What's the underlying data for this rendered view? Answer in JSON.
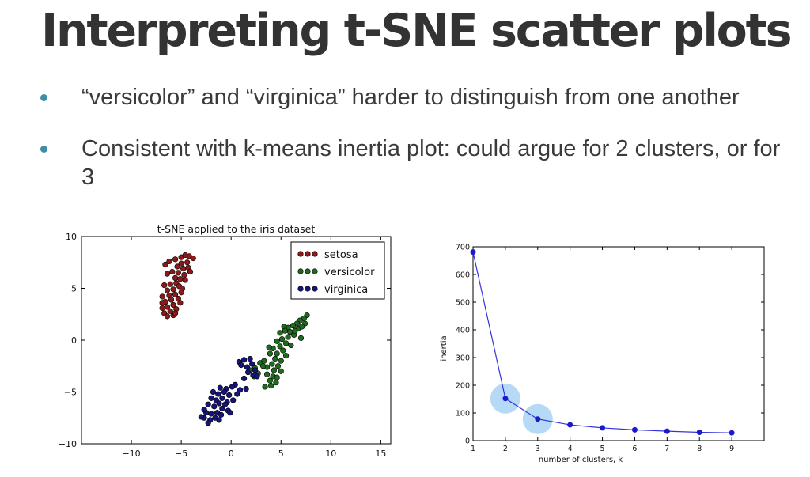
{
  "slide": {
    "title": "Interpreting t-SNE scatter plots",
    "bullets": [
      "“versicolor” and “virginica” harder to distinguish from one another",
      "Consistent with k-means inertia plot: could argue for 2 clusters, or for 3"
    ],
    "bullet_color": "#3f8ea6"
  },
  "chart_data": [
    {
      "type": "scatter",
      "title": "t-SNE applied to the iris dataset",
      "xlabel": "",
      "ylabel": "",
      "xlim": [
        -15,
        16
      ],
      "ylim": [
        -10,
        10
      ],
      "xticks": [
        -10,
        -5,
        0,
        5,
        10,
        15
      ],
      "yticks": [
        -10,
        -5,
        0,
        5,
        10
      ],
      "grid": false,
      "legend_position": "top-right",
      "series": [
        {
          "name": "setosa",
          "color": "#8b1a1a",
          "points": [
            [
              -6.6,
              7.3
            ],
            [
              -6.2,
              7.6
            ],
            [
              -5.6,
              7.8
            ],
            [
              -5.0,
              8.0
            ],
            [
              -4.6,
              8.2
            ],
            [
              -4.2,
              8.1
            ],
            [
              -3.8,
              7.9
            ],
            [
              -4.4,
              7.5
            ],
            [
              -5.0,
              7.4
            ],
            [
              -5.4,
              7.1
            ],
            [
              -4.8,
              6.9
            ],
            [
              -4.3,
              7.0
            ],
            [
              -4.1,
              6.6
            ],
            [
              -4.7,
              6.3
            ],
            [
              -5.3,
              6.5
            ],
            [
              -5.9,
              6.6
            ],
            [
              -6.4,
              6.4
            ],
            [
              -5.6,
              6.0
            ],
            [
              -5.1,
              5.9
            ],
            [
              -4.6,
              5.8
            ],
            [
              -5.5,
              5.5
            ],
            [
              -6.1,
              5.4
            ],
            [
              -6.7,
              5.3
            ],
            [
              -5.2,
              5.2
            ],
            [
              -4.9,
              5.0
            ],
            [
              -5.8,
              4.9
            ],
            [
              -6.4,
              4.8
            ],
            [
              -5.0,
              4.6
            ],
            [
              -5.6,
              4.4
            ],
            [
              -6.2,
              4.3
            ],
            [
              -6.9,
              4.2
            ],
            [
              -5.3,
              4.0
            ],
            [
              -6.0,
              3.9
            ],
            [
              -6.6,
              3.7
            ],
            [
              -5.1,
              3.6
            ],
            [
              -5.8,
              3.4
            ],
            [
              -6.4,
              3.2
            ],
            [
              -6.9,
              3.1
            ],
            [
              -5.5,
              3.0
            ],
            [
              -6.1,
              2.8
            ],
            [
              -6.7,
              2.6
            ],
            [
              -5.8,
              2.4
            ],
            [
              -6.4,
              2.3
            ],
            [
              -5.6,
              2.6
            ],
            [
              -6.9,
              3.6
            ]
          ]
        },
        {
          "name": "versicolor",
          "color": "#1e6b1e",
          "points": [
            [
              7.6,
              2.4
            ],
            [
              7.3,
              2.1
            ],
            [
              6.9,
              1.9
            ],
            [
              7.4,
              1.6
            ],
            [
              6.6,
              1.6
            ],
            [
              6.2,
              1.4
            ],
            [
              5.7,
              1.2
            ],
            [
              5.3,
              1.3
            ],
            [
              6.7,
              1.1
            ],
            [
              7.1,
              1.3
            ],
            [
              5.9,
              0.8
            ],
            [
              5.4,
              0.9
            ],
            [
              4.9,
              0.7
            ],
            [
              6.3,
              0.5
            ],
            [
              5.7,
              0.3
            ],
            [
              7.0,
              0.2
            ],
            [
              5.1,
              0.1
            ],
            [
              4.6,
              -0.1
            ],
            [
              5.5,
              -0.3
            ],
            [
              6.0,
              -0.5
            ],
            [
              4.9,
              -0.6
            ],
            [
              4.2,
              -0.8
            ],
            [
              3.8,
              -0.7
            ],
            [
              5.2,
              -1.0
            ],
            [
              4.6,
              -1.3
            ],
            [
              3.9,
              -1.3
            ],
            [
              5.5,
              -1.5
            ],
            [
              4.4,
              -1.8
            ],
            [
              5.0,
              -2.0
            ],
            [
              3.3,
              -2.0
            ],
            [
              4.1,
              -2.3
            ],
            [
              2.9,
              -2.2
            ],
            [
              4.7,
              -2.5
            ],
            [
              3.6,
              -2.6
            ],
            [
              2.4,
              -2.7
            ],
            [
              4.3,
              -2.9
            ],
            [
              5.0,
              -3.0
            ],
            [
              3.6,
              -3.3
            ],
            [
              4.2,
              -3.5
            ],
            [
              2.7,
              -3.2
            ],
            [
              4.6,
              -3.6
            ],
            [
              3.9,
              -3.9
            ],
            [
              4.5,
              -4.1
            ],
            [
              4.0,
              -4.4
            ],
            [
              3.4,
              -4.5
            ],
            [
              1.9,
              -2.9
            ],
            [
              3.2,
              -2.5
            ],
            [
              6.4,
              0.9
            ],
            [
              2.3,
              -3.5
            ]
          ]
        },
        {
          "name": "virginica",
          "color": "#14147a",
          "points": [
            [
              0.8,
              -2.1
            ],
            [
              1.3,
              -1.9
            ],
            [
              1.9,
              -1.8
            ],
            [
              1.0,
              -2.4
            ],
            [
              1.6,
              -2.6
            ],
            [
              2.1,
              -2.3
            ],
            [
              1.7,
              -3.1
            ],
            [
              2.2,
              -3.4
            ],
            [
              2.6,
              -3.5
            ],
            [
              1.3,
              -3.7
            ],
            [
              0.4,
              -4.3
            ],
            [
              0.1,
              -4.5
            ],
            [
              -0.5,
              -4.7
            ],
            [
              -1.1,
              -4.6
            ],
            [
              -0.7,
              -5.0
            ],
            [
              -1.3,
              -5.2
            ],
            [
              -1.8,
              -5.0
            ],
            [
              -0.2,
              -5.3
            ],
            [
              0.6,
              -5.2
            ],
            [
              -0.9,
              -5.6
            ],
            [
              -1.5,
              -5.8
            ],
            [
              -2.0,
              -5.6
            ],
            [
              -0.4,
              -6.0
            ],
            [
              0.2,
              -5.8
            ],
            [
              -1.2,
              -6.1
            ],
            [
              -1.7,
              -6.4
            ],
            [
              -2.3,
              -6.2
            ],
            [
              -0.9,
              -6.6
            ],
            [
              -0.3,
              -6.8
            ],
            [
              -1.4,
              -7.0
            ],
            [
              -2.0,
              -7.1
            ],
            [
              -2.5,
              -7.0
            ],
            [
              -1.6,
              -7.5
            ],
            [
              -2.1,
              -7.7
            ],
            [
              -2.7,
              -7.5
            ],
            [
              -2.3,
              -8.0
            ],
            [
              -1.2,
              -7.7
            ],
            [
              -3.0,
              -7.4
            ],
            [
              -0.6,
              -6.2
            ],
            [
              -1.0,
              -7.2
            ],
            [
              0.9,
              -4.8
            ],
            [
              1.5,
              -4.7
            ],
            [
              -0.1,
              -7.0
            ],
            [
              2.4,
              -2.9
            ],
            [
              -2.7,
              -6.7
            ]
          ]
        }
      ]
    },
    {
      "type": "line",
      "title": "",
      "xlabel": "number of clusters, k",
      "ylabel": "inertia",
      "xlim": [
        1,
        10
      ],
      "ylim": [
        0,
        700
      ],
      "xticks": [
        1,
        2,
        3,
        4,
        5,
        6,
        7,
        8,
        9
      ],
      "yticks": [
        0,
        100,
        200,
        300,
        400,
        500,
        600,
        700
      ],
      "x": [
        1,
        2,
        3,
        4,
        5,
        6,
        7,
        8,
        9
      ],
      "series": [
        {
          "name": "",
          "color": "#3434e0",
          "values": [
            681,
            152,
            78,
            57,
            46,
            39,
            34,
            30,
            28
          ]
        }
      ],
      "highlight_k": [
        2,
        3
      ],
      "highlight_color": "#a9d3f5"
    }
  ]
}
